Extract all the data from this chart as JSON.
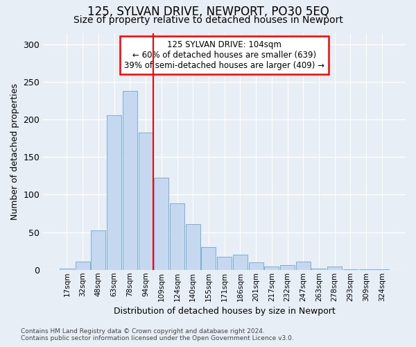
{
  "title1": "125, SYLVAN DRIVE, NEWPORT, PO30 5EQ",
  "title2": "Size of property relative to detached houses in Newport",
  "xlabel": "Distribution of detached houses by size in Newport",
  "ylabel": "Number of detached properties",
  "categories": [
    "17sqm",
    "32sqm",
    "48sqm",
    "63sqm",
    "78sqm",
    "94sqm",
    "109sqm",
    "124sqm",
    "140sqm",
    "155sqm",
    "171sqm",
    "186sqm",
    "201sqm",
    "217sqm",
    "232sqm",
    "247sqm",
    "263sqm",
    "278sqm",
    "293sqm",
    "309sqm",
    "324sqm"
  ],
  "values": [
    2,
    11,
    52,
    206,
    238,
    183,
    123,
    88,
    61,
    30,
    17,
    20,
    10,
    4,
    6,
    11,
    2,
    4,
    1,
    1,
    1
  ],
  "bar_color": "#C5D8EF",
  "bar_edge_color": "#7BAFD4",
  "bg_color": "#E8EEF6",
  "grid_color": "#FFFFFF",
  "vline_color": "red",
  "vline_x": 5.5,
  "annotation_text": "125 SYLVAN DRIVE: 104sqm\n← 60% of detached houses are smaller (639)\n39% of semi-detached houses are larger (409) →",
  "annotation_box_color": "white",
  "annotation_box_edge": "red",
  "footnote1": "Contains HM Land Registry data © Crown copyright and database right 2024.",
  "footnote2": "Contains public sector information licensed under the Open Government Licence v3.0.",
  "ylim": [
    0,
    315
  ],
  "yticks": [
    0,
    50,
    100,
    150,
    200,
    250,
    300
  ],
  "title1_fontsize": 12,
  "title2_fontsize": 10,
  "annot_fontsize": 8.5,
  "ylabel_fontsize": 9,
  "xlabel_fontsize": 9
}
